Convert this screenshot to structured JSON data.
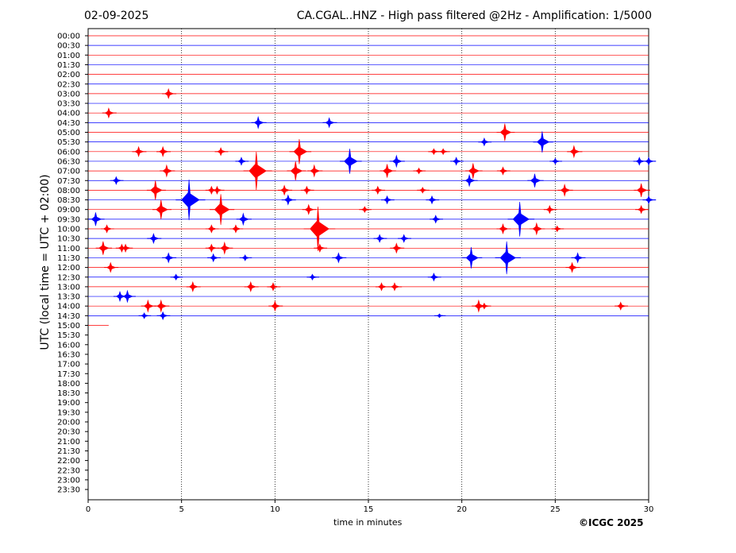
{
  "header": {
    "date": "02-09-2025",
    "title": "CA.CGAL..HNZ - High pass filtered @2Hz - Amplification: 1/5000"
  },
  "footer": {
    "copyright": "©ICGC 2025"
  },
  "chart_data": {
    "type": "line",
    "title": "CA.CGAL..HNZ - High pass filtered @2Hz - Amplification: 1/5000",
    "xlabel": "time in minutes",
    "ylabel": "UTC (local time = UTC + 02:00)",
    "xlim": [
      0,
      30
    ],
    "x_ticks": [
      0,
      5,
      10,
      15,
      20,
      25,
      30
    ],
    "x_gridlines": [
      5,
      10,
      15,
      20,
      25
    ],
    "grid": "vertical dotted",
    "row_labels": [
      "00:00",
      "00:30",
      "01:00",
      "01:30",
      "02:00",
      "02:30",
      "03:00",
      "03:30",
      "04:00",
      "04:30",
      "05:00",
      "05:30",
      "06:00",
      "06:30",
      "07:00",
      "07:30",
      "08:00",
      "08:30",
      "09:00",
      "09:30",
      "10:00",
      "10:30",
      "11:00",
      "11:30",
      "12:00",
      "12:30",
      "13:00",
      "13:30",
      "14:00",
      "14:30",
      "15:00",
      "15:30",
      "16:00",
      "16:30",
      "17:00",
      "17:30",
      "18:00",
      "18:30",
      "19:00",
      "19:30",
      "20:00",
      "20:30",
      "21:00",
      "21:30",
      "22:00",
      "22:30",
      "23:00",
      "23:30"
    ],
    "trace_colors": [
      "#ff0000",
      "#0000ff"
    ],
    "traces_recorded_until": {
      "row": "15:00",
      "minute": 1.1
    },
    "events": [
      {
        "row": "03:00",
        "minute": 4.3,
        "amp": 0.5
      },
      {
        "row": "04:00",
        "minute": 1.1,
        "amp": 0.5
      },
      {
        "row": "04:30",
        "minute": 9.1,
        "amp": 0.6
      },
      {
        "row": "04:30",
        "minute": 12.9,
        "amp": 0.5
      },
      {
        "row": "05:00",
        "minute": 22.3,
        "amp": 0.9
      },
      {
        "row": "05:30",
        "minute": 21.2,
        "amp": 0.4
      },
      {
        "row": "05:30",
        "minute": 24.3,
        "amp": 1.1
      },
      {
        "row": "06:00",
        "minute": 2.7,
        "amp": 0.5
      },
      {
        "row": "06:00",
        "minute": 4.0,
        "amp": 0.5
      },
      {
        "row": "06:00",
        "minute": 7.1,
        "amp": 0.4
      },
      {
        "row": "06:00",
        "minute": 11.3,
        "amp": 1.3
      },
      {
        "row": "06:00",
        "minute": 18.5,
        "amp": 0.3
      },
      {
        "row": "06:00",
        "minute": 19.0,
        "amp": 0.3
      },
      {
        "row": "06:00",
        "minute": 26.0,
        "amp": 0.6
      },
      {
        "row": "06:30",
        "minute": 8.2,
        "amp": 0.4
      },
      {
        "row": "06:30",
        "minute": 14.0,
        "amp": 1.3
      },
      {
        "row": "06:30",
        "minute": 16.5,
        "amp": 0.6
      },
      {
        "row": "06:30",
        "minute": 19.7,
        "amp": 0.4
      },
      {
        "row": "06:30",
        "minute": 25.0,
        "amp": 0.3
      },
      {
        "row": "06:30",
        "minute": 29.5,
        "amp": 0.4
      },
      {
        "row": "06:30",
        "minute": 30.0,
        "amp": 0.4
      },
      {
        "row": "07:00",
        "minute": 4.2,
        "amp": 0.6
      },
      {
        "row": "07:00",
        "minute": 9.0,
        "amp": 2.0
      },
      {
        "row": "07:00",
        "minute": 11.1,
        "amp": 1.0
      },
      {
        "row": "07:00",
        "minute": 12.1,
        "amp": 0.6
      },
      {
        "row": "07:00",
        "minute": 16.0,
        "amp": 0.7
      },
      {
        "row": "07:00",
        "minute": 17.7,
        "amp": 0.3
      },
      {
        "row": "07:00",
        "minute": 20.6,
        "amp": 0.8
      },
      {
        "row": "07:00",
        "minute": 22.2,
        "amp": 0.4
      },
      {
        "row": "07:30",
        "minute": 1.5,
        "amp": 0.4
      },
      {
        "row": "07:30",
        "minute": 20.4,
        "amp": 0.6
      },
      {
        "row": "07:30",
        "minute": 23.9,
        "amp": 0.7
      },
      {
        "row": "08:00",
        "minute": 3.6,
        "amp": 1.0
      },
      {
        "row": "08:00",
        "minute": 6.6,
        "amp": 0.4
      },
      {
        "row": "08:00",
        "minute": 6.9,
        "amp": 0.4
      },
      {
        "row": "08:00",
        "minute": 10.5,
        "amp": 0.5
      },
      {
        "row": "08:00",
        "minute": 11.7,
        "amp": 0.4
      },
      {
        "row": "08:00",
        "minute": 15.5,
        "amp": 0.4
      },
      {
        "row": "08:00",
        "minute": 17.9,
        "amp": 0.3
      },
      {
        "row": "08:00",
        "minute": 25.5,
        "amp": 0.6
      },
      {
        "row": "08:00",
        "minute": 29.6,
        "amp": 0.7
      },
      {
        "row": "08:30",
        "minute": 5.4,
        "amp": 2.1
      },
      {
        "row": "08:30",
        "minute": 10.7,
        "amp": 0.5
      },
      {
        "row": "08:30",
        "minute": 16.0,
        "amp": 0.4
      },
      {
        "row": "08:30",
        "minute": 18.4,
        "amp": 0.4
      },
      {
        "row": "08:30",
        "minute": 30.0,
        "amp": 0.4
      },
      {
        "row": "09:00",
        "minute": 3.9,
        "amp": 1.0
      },
      {
        "row": "09:00",
        "minute": 7.1,
        "amp": 1.6
      },
      {
        "row": "09:00",
        "minute": 11.8,
        "amp": 0.5
      },
      {
        "row": "09:00",
        "minute": 14.8,
        "amp": 0.3
      },
      {
        "row": "09:00",
        "minute": 24.7,
        "amp": 0.4
      },
      {
        "row": "09:00",
        "minute": 29.6,
        "amp": 0.4
      },
      {
        "row": "09:30",
        "minute": 0.4,
        "amp": 0.7
      },
      {
        "row": "09:30",
        "minute": 8.3,
        "amp": 0.6
      },
      {
        "row": "09:30",
        "minute": 18.6,
        "amp": 0.4
      },
      {
        "row": "09:30",
        "minute": 23.1,
        "amp": 1.8
      },
      {
        "row": "10:00",
        "minute": 1.0,
        "amp": 0.4
      },
      {
        "row": "10:00",
        "minute": 6.6,
        "amp": 0.4
      },
      {
        "row": "10:00",
        "minute": 7.9,
        "amp": 0.4
      },
      {
        "row": "10:00",
        "minute": 12.3,
        "amp": 2.3
      },
      {
        "row": "10:00",
        "minute": 22.2,
        "amp": 0.5
      },
      {
        "row": "10:00",
        "minute": 24.0,
        "amp": 0.6
      },
      {
        "row": "10:00",
        "minute": 25.1,
        "amp": 0.3
      },
      {
        "row": "10:30",
        "minute": 3.5,
        "amp": 0.5
      },
      {
        "row": "10:30",
        "minute": 15.6,
        "amp": 0.4
      },
      {
        "row": "10:30",
        "minute": 16.9,
        "amp": 0.4
      },
      {
        "row": "11:00",
        "minute": 0.8,
        "amp": 0.7
      },
      {
        "row": "11:00",
        "minute": 1.8,
        "amp": 0.4
      },
      {
        "row": "11:00",
        "minute": 2.0,
        "amp": 0.4
      },
      {
        "row": "11:00",
        "minute": 6.6,
        "amp": 0.4
      },
      {
        "row": "11:00",
        "minute": 7.3,
        "amp": 0.6
      },
      {
        "row": "11:00",
        "minute": 12.4,
        "amp": 0.4
      },
      {
        "row": "11:00",
        "minute": 16.5,
        "amp": 0.5
      },
      {
        "row": "11:30",
        "minute": 4.3,
        "amp": 0.5
      },
      {
        "row": "11:30",
        "minute": 6.7,
        "amp": 0.4
      },
      {
        "row": "11:30",
        "minute": 8.4,
        "amp": 0.3
      },
      {
        "row": "11:30",
        "minute": 13.4,
        "amp": 0.5
      },
      {
        "row": "11:30",
        "minute": 20.5,
        "amp": 1.1
      },
      {
        "row": "11:30",
        "minute": 22.4,
        "amp": 1.7
      },
      {
        "row": "11:30",
        "minute": 26.2,
        "amp": 0.5
      },
      {
        "row": "12:00",
        "minute": 1.2,
        "amp": 0.5
      },
      {
        "row": "12:00",
        "minute": 25.9,
        "amp": 0.5
      },
      {
        "row": "12:30",
        "minute": 4.7,
        "amp": 0.3
      },
      {
        "row": "12:30",
        "minute": 12.0,
        "amp": 0.3
      },
      {
        "row": "12:30",
        "minute": 18.5,
        "amp": 0.4
      },
      {
        "row": "13:00",
        "minute": 5.6,
        "amp": 0.5
      },
      {
        "row": "13:00",
        "minute": 8.7,
        "amp": 0.5
      },
      {
        "row": "13:00",
        "minute": 9.9,
        "amp": 0.4
      },
      {
        "row": "13:00",
        "minute": 15.7,
        "amp": 0.4
      },
      {
        "row": "13:00",
        "minute": 16.4,
        "amp": 0.4
      },
      {
        "row": "13:30",
        "minute": 1.7,
        "amp": 0.5
      },
      {
        "row": "13:30",
        "minute": 2.1,
        "amp": 0.6
      },
      {
        "row": "14:00",
        "minute": 3.2,
        "amp": 0.6
      },
      {
        "row": "14:00",
        "minute": 3.9,
        "amp": 0.6
      },
      {
        "row": "14:00",
        "minute": 10.0,
        "amp": 0.5
      },
      {
        "row": "14:00",
        "minute": 20.9,
        "amp": 0.6
      },
      {
        "row": "14:00",
        "minute": 21.2,
        "amp": 0.3
      },
      {
        "row": "14:00",
        "minute": 28.5,
        "amp": 0.4
      },
      {
        "row": "14:30",
        "minute": 3.0,
        "amp": 0.3
      },
      {
        "row": "14:30",
        "minute": 4.0,
        "amp": 0.4
      },
      {
        "row": "14:30",
        "minute": 18.8,
        "amp": 0.2
      }
    ]
  }
}
